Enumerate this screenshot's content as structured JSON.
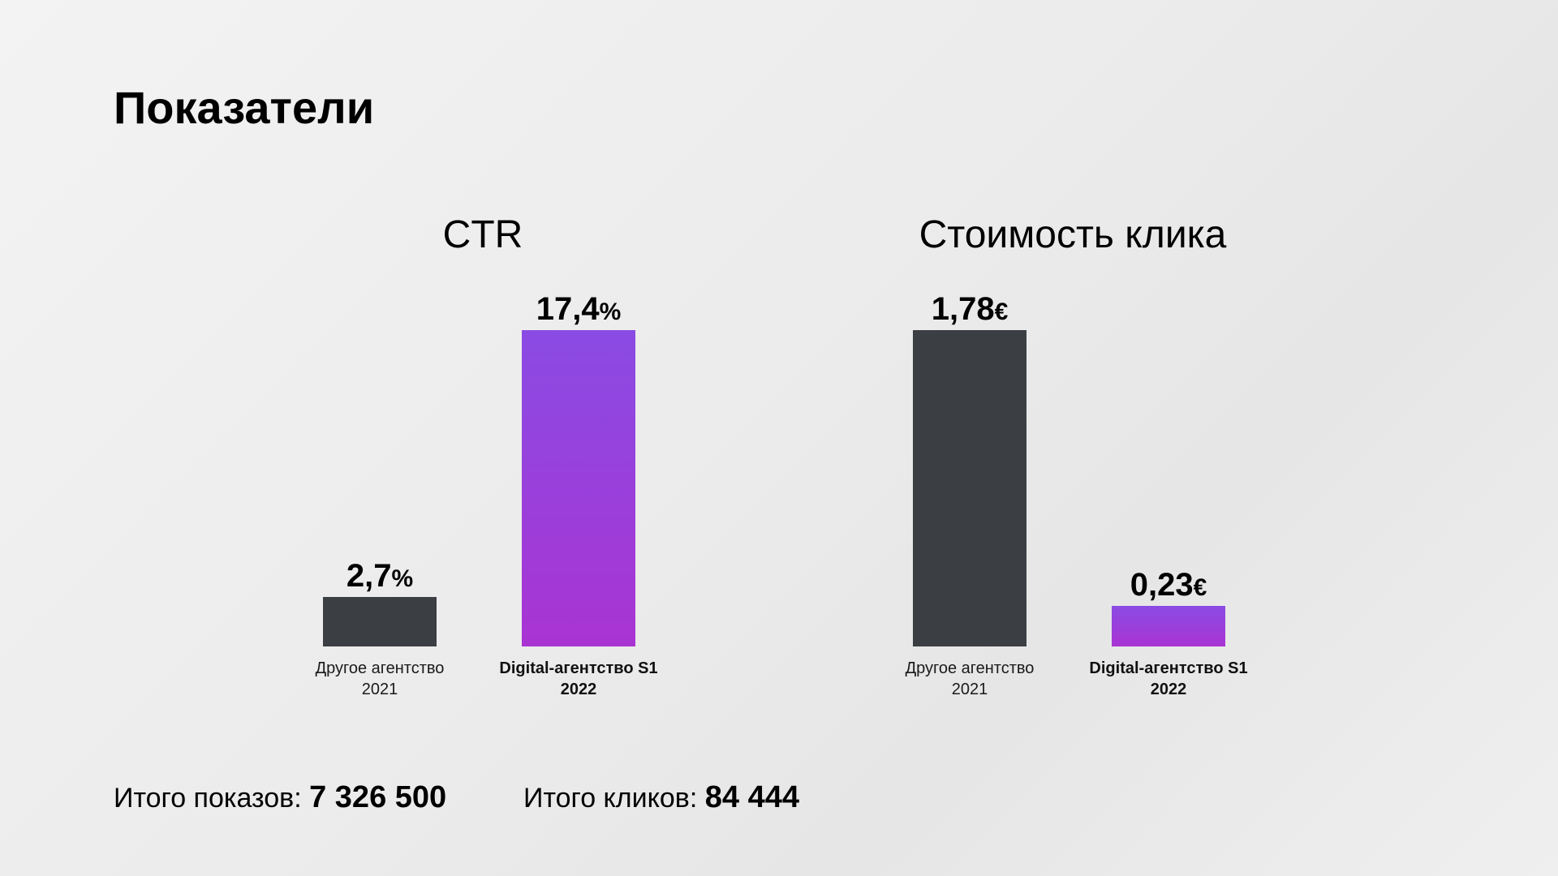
{
  "page": {
    "title": "Показатели"
  },
  "chart_data": [
    {
      "type": "bar",
      "title": "CTR",
      "categories": [
        [
          "Другое агентство",
          "2021"
        ],
        [
          "Digital-агентство S1",
          "2022"
        ]
      ],
      "values": [
        2.7,
        17.4
      ],
      "value_labels": [
        "2,7",
        "17,4"
      ],
      "unit": "%",
      "colors": [
        "#3b3e43",
        "#9a3fdb"
      ],
      "ylim": [
        0,
        17.4
      ],
      "grid": false,
      "legend": "none"
    },
    {
      "type": "bar",
      "title": "Стоимость клика",
      "categories": [
        [
          "Другое агентство",
          "2021"
        ],
        [
          "Digital-агентство S1",
          "2022"
        ]
      ],
      "values": [
        1.78,
        0.23
      ],
      "value_labels": [
        "1,78",
        "0,23"
      ],
      "unit": "€",
      "colors": [
        "#3b3e43",
        "#9a3fdb"
      ],
      "ylim": [
        0,
        1.78
      ],
      "grid": false,
      "legend": "none"
    }
  ],
  "totals": {
    "impressions": {
      "label": "Итого показов:",
      "value": "7 326 500"
    },
    "clicks": {
      "label": "Итого кликов:",
      "value": "84 444"
    }
  }
}
